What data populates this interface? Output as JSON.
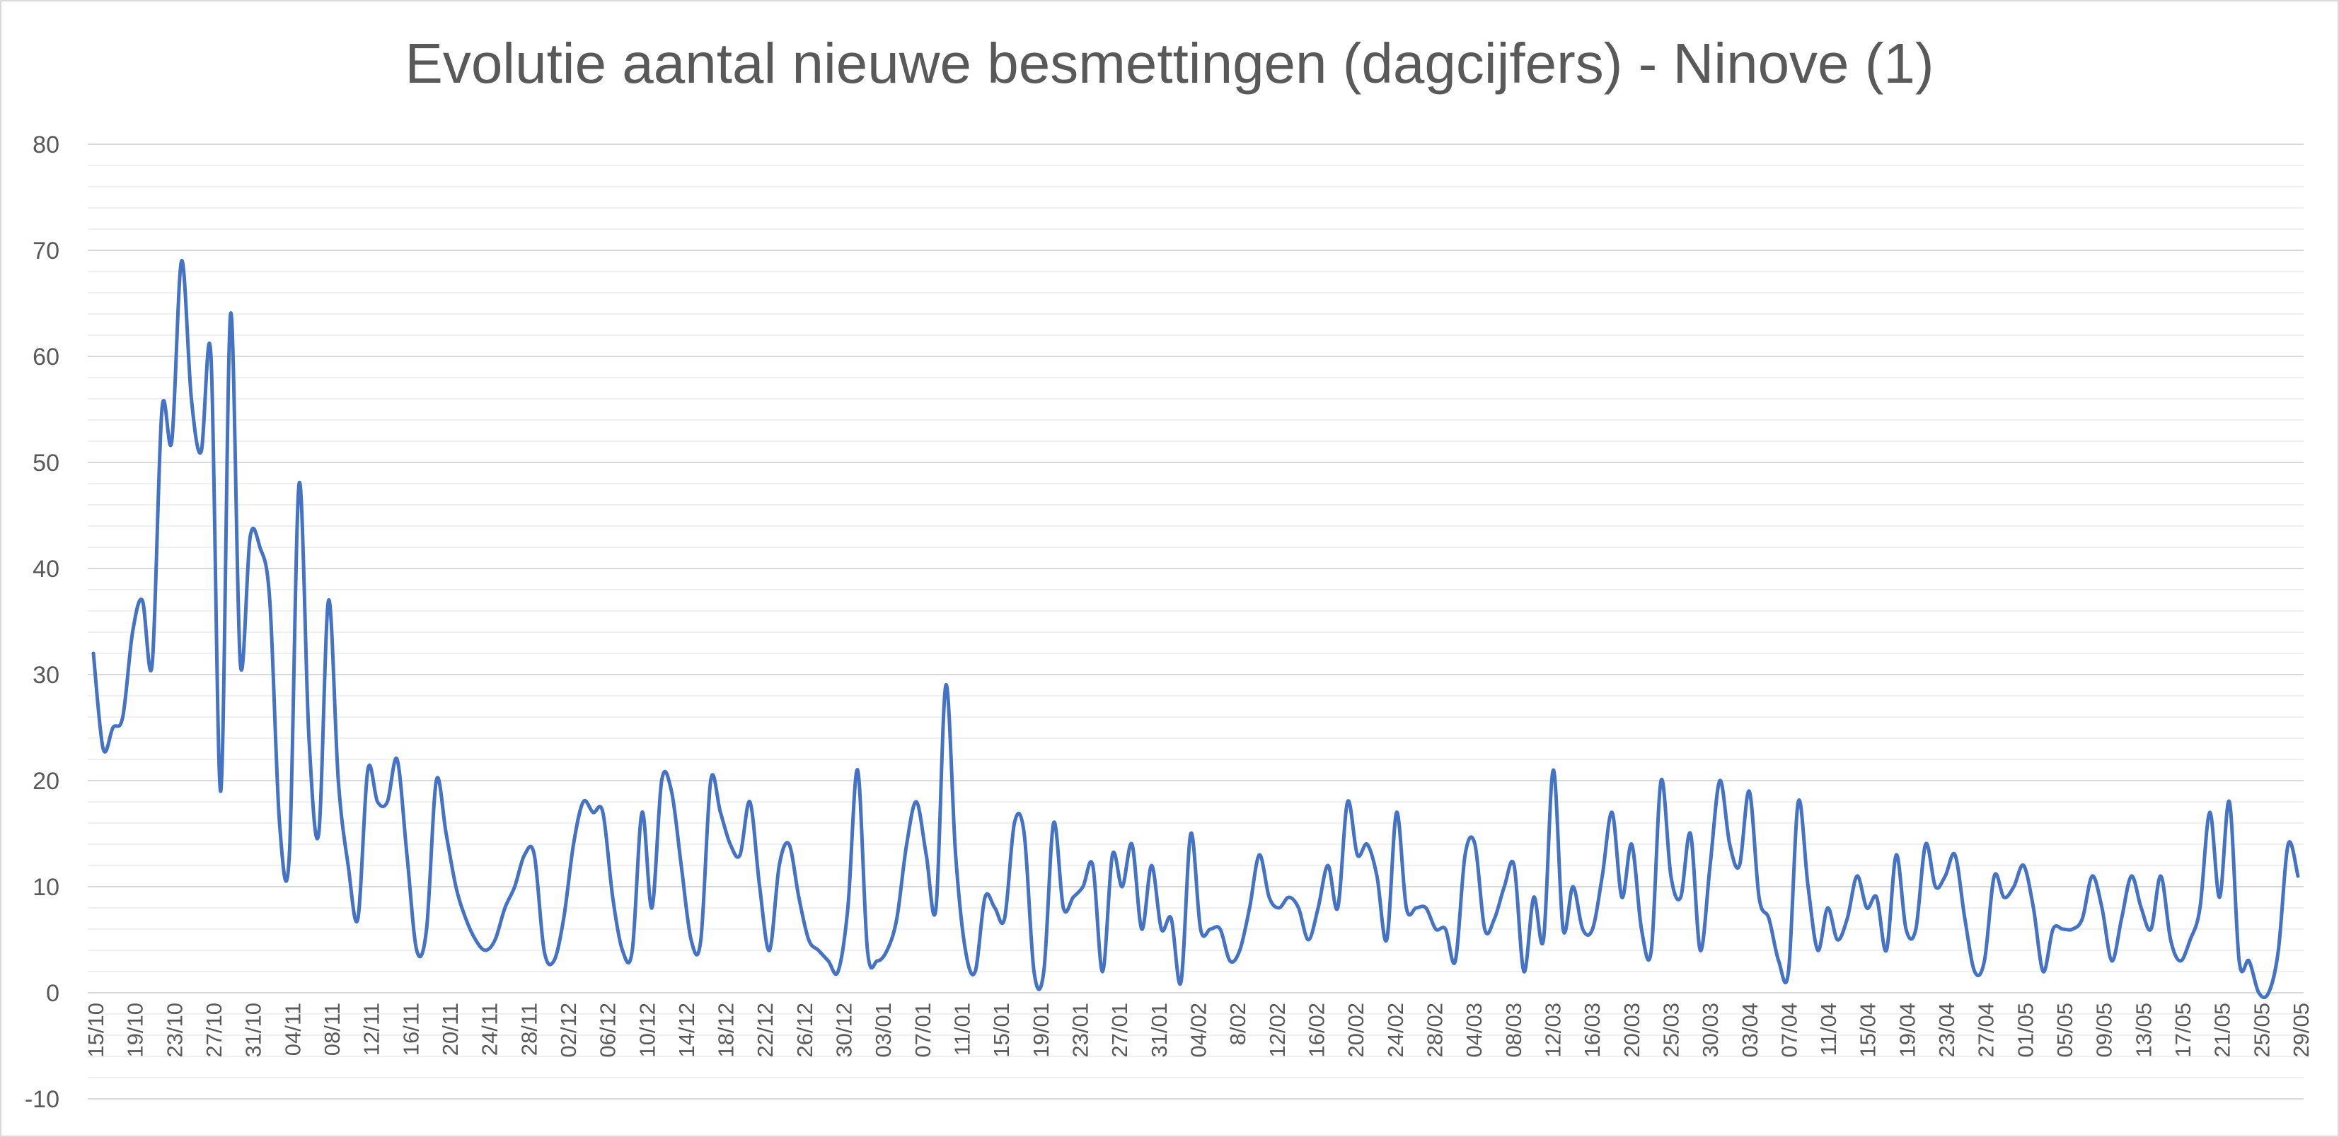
{
  "chart_data": {
    "type": "line",
    "title": "Evolutie aantal nieuwe besmettingen (dagcijfers) - Ninove (1)",
    "xlabel": "",
    "ylabel": "",
    "ylim": [
      -10,
      80
    ],
    "y_ticks": [
      "-10",
      "0",
      "10",
      "20",
      "30",
      "40",
      "50",
      "60",
      "70",
      "80"
    ],
    "grid": "major and minor horizontal",
    "legend": "none",
    "line_color": "#4472c4",
    "x_tick_labels": [
      "15/10",
      "19/10",
      "23/10",
      "27/10",
      "31/10",
      "04/11",
      "08/11",
      "12/11",
      "16/11",
      "20/11",
      "24/11",
      "28/11",
      "02/12",
      "06/12",
      "10/12",
      "14/12",
      "18/12",
      "22/12",
      "26/12",
      "30/12",
      "03/01",
      "07/01",
      "11/01",
      "15/01",
      "19/01",
      "23/01",
      "27/01",
      "31/01",
      "04/02",
      "8/02",
      "12/02",
      "16/02",
      "20/02",
      "24/02",
      "28/02",
      "04/03",
      "08/03",
      "12/03",
      "16/03",
      "20/03",
      "25/03",
      "30/03",
      "03/04",
      "07/04",
      "11/04",
      "15/04",
      "19/04",
      "23/04",
      "27/04",
      "01/05",
      "05/05",
      "09/05",
      "13/05",
      "17/05",
      "21/05",
      "25/05",
      "29/05"
    ],
    "series": [
      {
        "values": [
          32,
          23,
          25,
          26,
          34,
          37,
          31,
          55,
          52,
          69,
          56,
          51,
          60,
          19,
          64,
          31,
          43,
          42,
          37,
          16,
          13,
          48,
          24,
          15,
          37,
          20,
          12,
          7,
          21,
          18,
          18,
          22,
          13,
          4,
          6,
          20,
          15,
          10,
          7,
          5,
          4,
          5,
          8,
          10,
          13,
          13,
          4,
          3,
          7,
          14,
          18,
          17,
          17,
          9,
          4,
          4,
          17,
          8,
          20,
          19,
          12,
          5,
          5,
          20,
          17,
          14,
          13,
          18,
          10,
          4,
          12,
          14,
          9,
          5,
          4,
          3,
          2,
          8,
          21,
          4,
          3,
          4,
          7,
          14,
          18,
          13,
          8,
          29,
          13,
          4,
          2,
          9,
          8,
          7,
          16,
          15,
          2,
          2,
          16,
          8,
          9,
          10,
          12,
          2,
          13,
          10,
          14,
          6,
          12,
          6,
          7,
          1,
          15,
          6,
          6,
          6,
          3,
          4,
          8,
          13,
          9,
          8,
          9,
          8,
          5,
          8,
          12,
          8,
          18,
          13,
          14,
          11,
          5,
          17,
          8,
          8,
          8,
          6,
          6,
          3,
          13,
          14,
          6,
          7,
          10,
          12,
          2,
          9,
          5,
          21,
          6,
          10,
          6,
          6,
          11,
          17,
          9,
          14,
          6,
          4,
          20,
          11,
          9,
          15,
          4,
          12,
          20,
          14,
          12,
          19,
          9,
          7,
          3,
          2,
          18,
          10,
          4,
          8,
          5,
          7,
          11,
          8,
          9,
          4,
          13,
          6,
          6,
          14,
          10,
          11,
          13,
          7,
          2,
          3,
          11,
          9,
          10,
          12,
          8,
          2,
          6,
          6,
          6,
          7,
          11,
          8,
          3,
          7,
          11,
          8,
          6,
          11,
          5,
          3,
          5,
          8,
          17,
          9,
          18,
          3,
          3,
          0,
          0,
          4,
          14,
          11
        ]
      }
    ]
  }
}
